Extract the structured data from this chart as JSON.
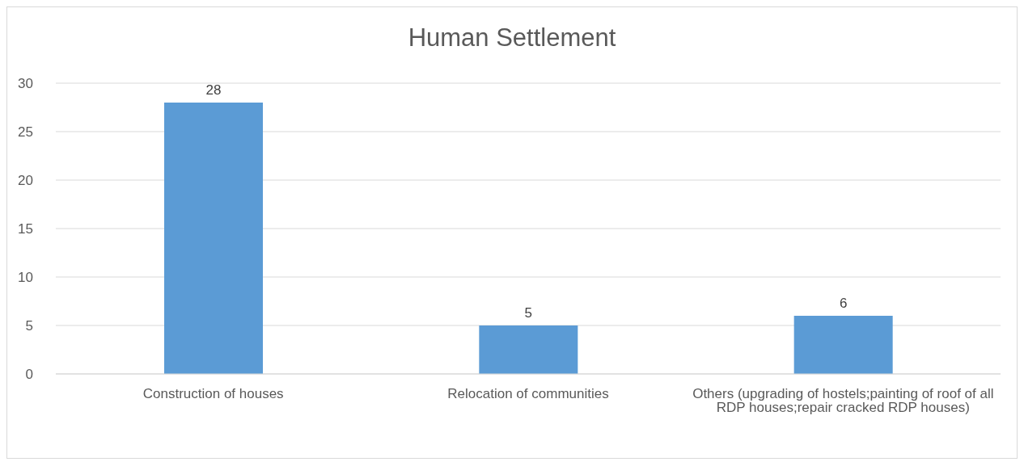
{
  "chart_data": {
    "type": "bar",
    "title": "Human Settlement",
    "categories": [
      "Construction of houses",
      "Relocation of communities",
      "Others (upgrading of hostels;painting of roof of all RDP houses;repair cracked RDP houses)"
    ],
    "values": [
      28,
      5,
      6
    ],
    "color": "#5b9bd5",
    "ylim": [
      0,
      30
    ],
    "yticks": [
      0,
      5,
      10,
      15,
      20,
      25,
      30
    ],
    "grid": "y",
    "data_labels": true,
    "legend": false
  }
}
